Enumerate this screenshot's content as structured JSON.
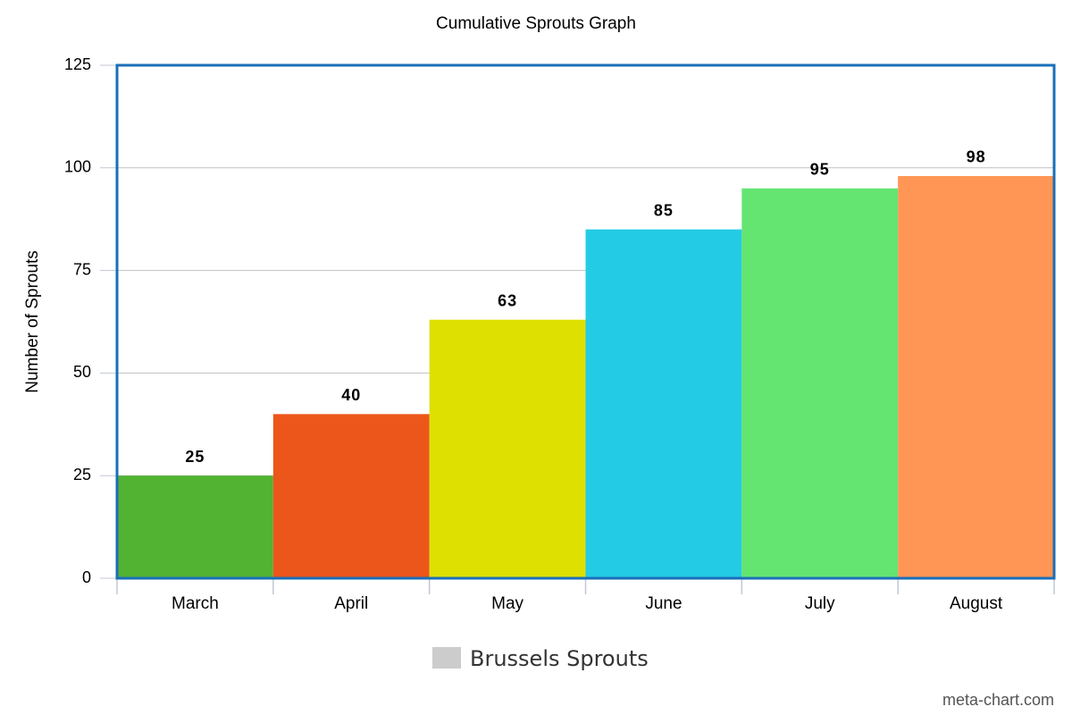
{
  "chart_data": {
    "type": "bar",
    "title": "Cumulative Sprouts Graph",
    "y_label": "Number of Sprouts",
    "categories": [
      "March",
      "April",
      "May",
      "June",
      "July",
      "August"
    ],
    "series": [
      {
        "name": "Brussels Sprouts",
        "color": "#cccccc",
        "values": [
          25,
          40,
          63,
          85,
          95,
          98
        ],
        "colors": [
          "#52b232",
          "#ec561b",
          "#dde000",
          "#24cbe5",
          "#64e572",
          "#ff9655"
        ]
      }
    ],
    "ylim": [
      0,
      125
    ],
    "yticks": [
      0,
      25,
      50,
      75,
      100,
      125
    ],
    "grid": true,
    "legend": "bottom",
    "watermark": "meta-chart.com"
  }
}
